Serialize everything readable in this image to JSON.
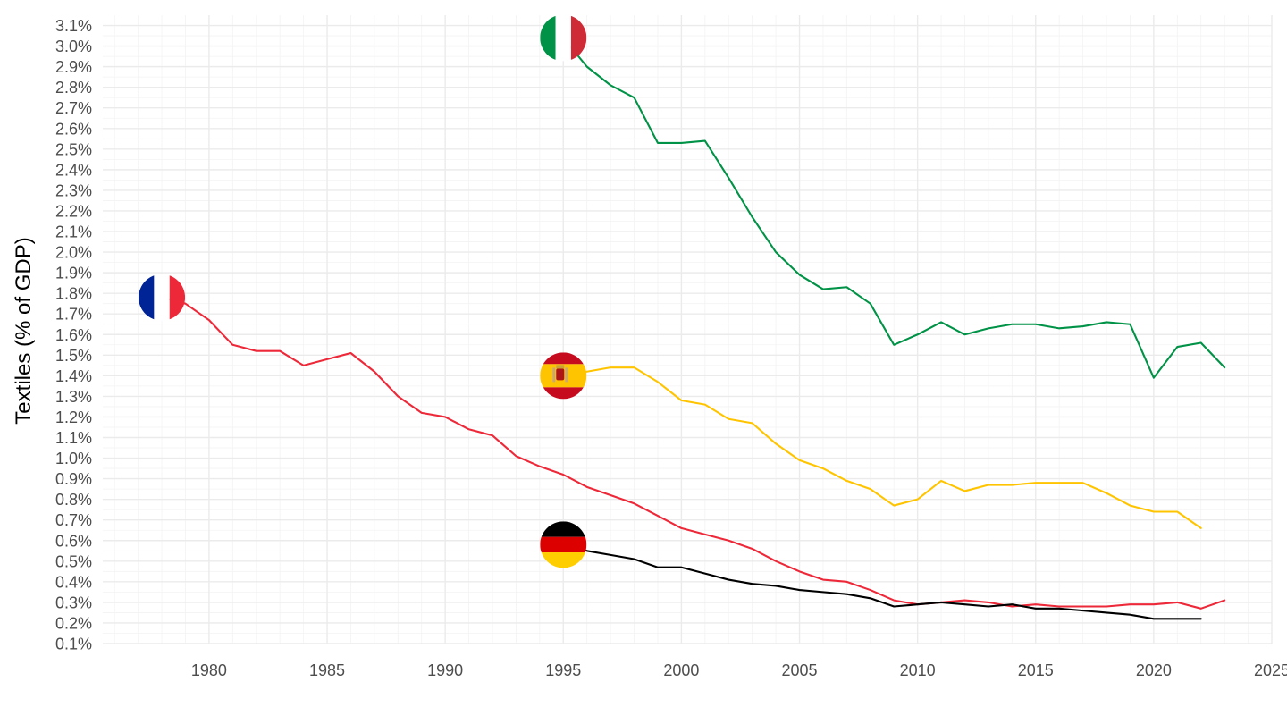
{
  "chart_data": {
    "type": "line",
    "title": "",
    "xlabel": "",
    "ylabel": "Textiles (% of GDP)",
    "xlim": [
      1975.5,
      2025
    ],
    "ylim": [
      0.1,
      3.15
    ],
    "x_ticks": [
      1980,
      1985,
      1990,
      1995,
      2000,
      2005,
      2010,
      2015,
      2020,
      2025
    ],
    "x_tick_labels": [
      "1980",
      "1985",
      "1990",
      "1995",
      "2000",
      "2005",
      "2010",
      "2015",
      "2020",
      "2025"
    ],
    "y_ticks": [
      0.1,
      0.2,
      0.3,
      0.4,
      0.5,
      0.6,
      0.7,
      0.8,
      0.9,
      1.0,
      1.1,
      1.2,
      1.3,
      1.4,
      1.5,
      1.6,
      1.7,
      1.8,
      1.9,
      2.0,
      2.1,
      2.2,
      2.3,
      2.4,
      2.5,
      2.6,
      2.7,
      2.8,
      2.9,
      3.0,
      3.1
    ],
    "y_tick_labels": [
      "0.1%",
      "0.2%",
      "0.3%",
      "0.4%",
      "0.5%",
      "0.6%",
      "0.7%",
      "0.8%",
      "0.9%",
      "1.0%",
      "1.1%",
      "1.2%",
      "1.3%",
      "1.4%",
      "1.5%",
      "1.6%",
      "1.7%",
      "1.8%",
      "1.9%",
      "2.0%",
      "2.1%",
      "2.2%",
      "2.3%",
      "2.4%",
      "2.5%",
      "2.6%",
      "2.7%",
      "2.8%",
      "2.9%",
      "3.0%",
      "3.1%"
    ],
    "grid": true,
    "legend": "none",
    "series": [
      {
        "country": "Italy",
        "color": "#009246",
        "flag": "italy-flag-icon",
        "x": [
          1995,
          1996,
          1997,
          1998,
          1999,
          2000,
          2001,
          2002,
          2003,
          2004,
          2005,
          2006,
          2007,
          2008,
          2009,
          2010,
          2011,
          2012,
          2013,
          2014,
          2015,
          2016,
          2017,
          2018,
          2019,
          2020,
          2021,
          2022,
          2023
        ],
        "y": [
          3.04,
          2.9,
          2.81,
          2.75,
          2.53,
          2.53,
          2.54,
          2.36,
          2.17,
          2.0,
          1.89,
          1.82,
          1.83,
          1.75,
          1.55,
          1.6,
          1.66,
          1.6,
          1.63,
          1.65,
          1.65,
          1.63,
          1.64,
          1.66,
          1.65,
          1.39,
          1.54,
          1.56,
          1.44
        ]
      },
      {
        "country": "Spain",
        "color": "#FFC400",
        "flag": "spain-flag-icon",
        "x": [
          1995,
          1996,
          1997,
          1998,
          1999,
          2000,
          2001,
          2002,
          2003,
          2004,
          2005,
          2006,
          2007,
          2008,
          2009,
          2010,
          2011,
          2012,
          2013,
          2014,
          2015,
          2016,
          2017,
          2018,
          2019,
          2020,
          2021,
          2022
        ],
        "y": [
          1.4,
          1.42,
          1.44,
          1.44,
          1.37,
          1.28,
          1.26,
          1.19,
          1.17,
          1.07,
          0.99,
          0.95,
          0.89,
          0.85,
          0.77,
          0.8,
          0.89,
          0.84,
          0.87,
          0.87,
          0.88,
          0.88,
          0.88,
          0.83,
          0.77,
          0.74,
          0.74,
          0.66
        ]
      },
      {
        "country": "France",
        "color": "#ED2939",
        "flag": "france-flag-icon",
        "x": [
          1978,
          1979,
          1980,
          1981,
          1982,
          1983,
          1984,
          1985,
          1986,
          1987,
          1988,
          1989,
          1990,
          1991,
          1992,
          1993,
          1994,
          1995,
          1996,
          1997,
          1998,
          1999,
          2000,
          2001,
          2002,
          2003,
          2004,
          2005,
          2006,
          2007,
          2008,
          2009,
          2010,
          2011,
          2012,
          2013,
          2014,
          2015,
          2016,
          2017,
          2018,
          2019,
          2020,
          2021,
          2022,
          2023
        ],
        "y": [
          1.78,
          1.75,
          1.67,
          1.55,
          1.52,
          1.52,
          1.45,
          1.48,
          1.51,
          1.42,
          1.3,
          1.22,
          1.2,
          1.14,
          1.11,
          1.01,
          0.96,
          0.92,
          0.86,
          0.82,
          0.78,
          0.72,
          0.66,
          0.63,
          0.6,
          0.56,
          0.5,
          0.45,
          0.41,
          0.4,
          0.36,
          0.31,
          0.29,
          0.3,
          0.31,
          0.3,
          0.28,
          0.29,
          0.28,
          0.28,
          0.28,
          0.29,
          0.29,
          0.3,
          0.27,
          0.31
        ]
      },
      {
        "country": "Germany",
        "color": "#000000",
        "flag": "germany-flag-icon",
        "x": [
          1995,
          1996,
          1997,
          1998,
          1999,
          2000,
          2001,
          2002,
          2003,
          2004,
          2005,
          2006,
          2007,
          2008,
          2009,
          2010,
          2011,
          2012,
          2013,
          2014,
          2015,
          2016,
          2017,
          2018,
          2019,
          2020,
          2021,
          2022
        ],
        "y": [
          0.58,
          0.55,
          0.53,
          0.51,
          0.47,
          0.47,
          0.44,
          0.41,
          0.39,
          0.38,
          0.36,
          0.35,
          0.34,
          0.32,
          0.28,
          0.29,
          0.3,
          0.29,
          0.28,
          0.29,
          0.27,
          0.27,
          0.26,
          0.25,
          0.24,
          0.22,
          0.22,
          0.22
        ]
      }
    ]
  }
}
